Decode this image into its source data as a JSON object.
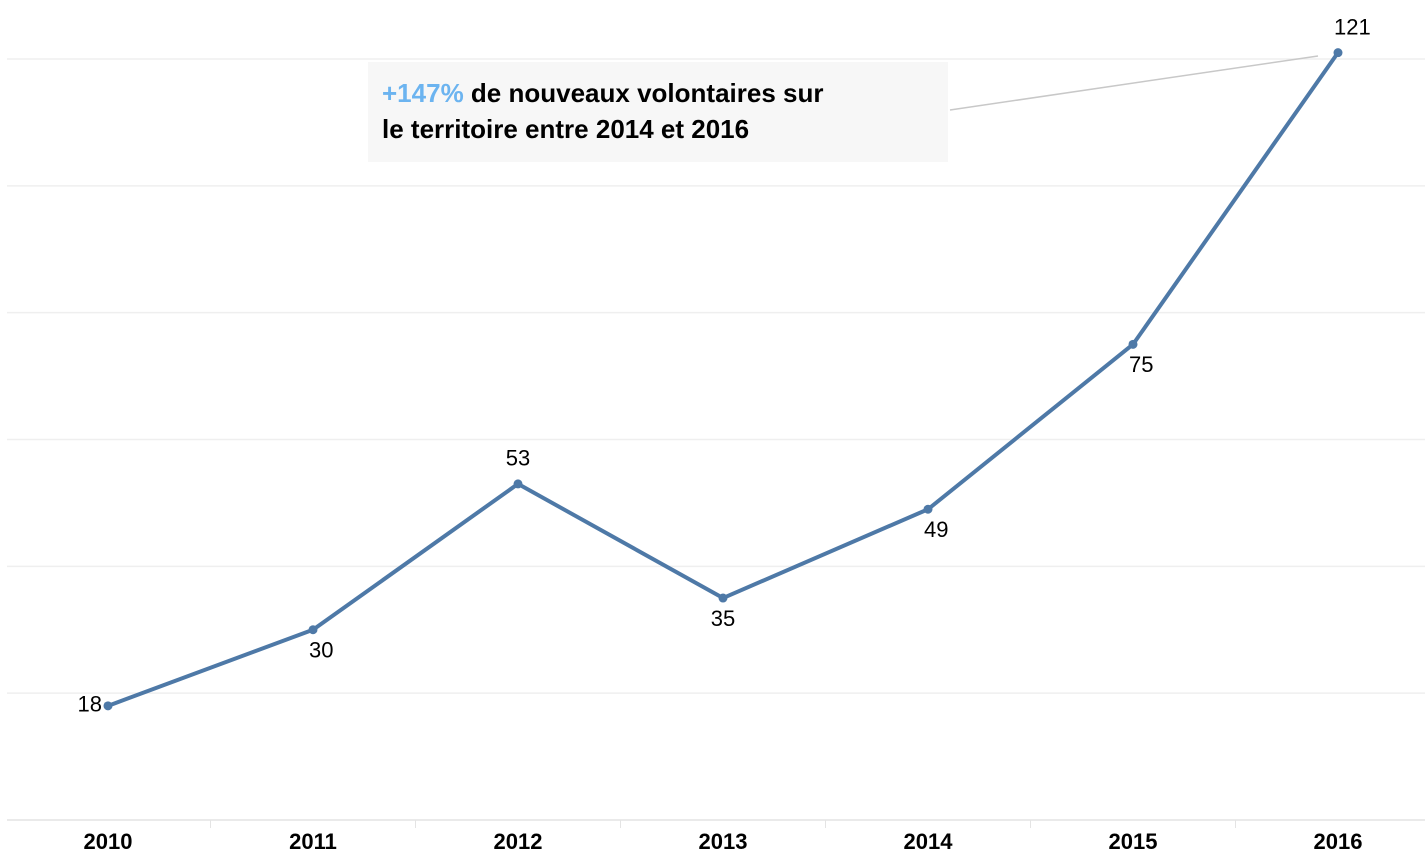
{
  "chart_data": {
    "type": "line",
    "categories": [
      "2010",
      "2011",
      "2012",
      "2013",
      "2014",
      "2015",
      "2016"
    ],
    "series": [
      {
        "name": null,
        "color": "#4e79a7",
        "values": [
          18,
          30,
          53,
          35,
          49,
          75,
          121
        ]
      }
    ],
    "ylim": [
      0,
      129.3
    ],
    "yticks": [
      0,
      20,
      40,
      60,
      80,
      100,
      120
    ],
    "grid": true,
    "annotation": {
      "highlight": "+147%",
      "lines": [
        "de nouveaux volontaires sur",
        "le territoire entre 2014 et 2016"
      ]
    }
  }
}
